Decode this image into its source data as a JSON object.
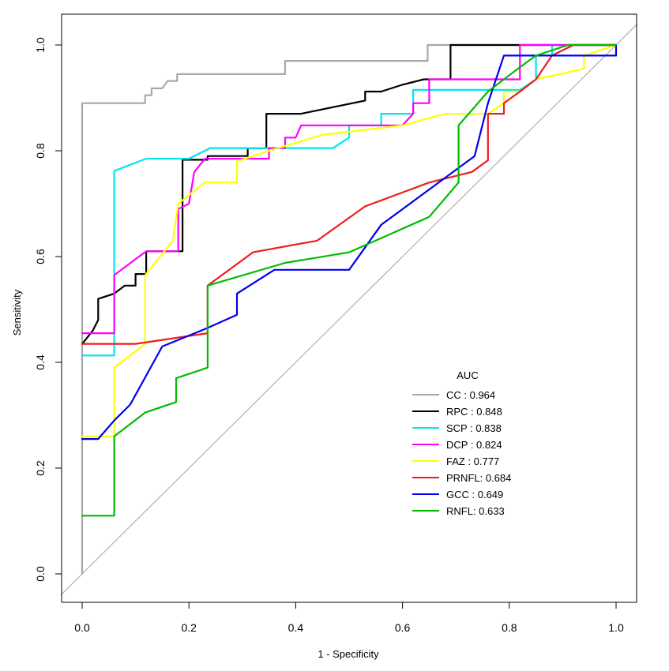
{
  "chart_data": {
    "type": "line",
    "title": "",
    "xlabel": "1 - Specificity",
    "ylabel": "Sensitivity",
    "xlim": [
      0,
      1
    ],
    "ylim": [
      0,
      1
    ],
    "xticks": [
      "0.0",
      "0.2",
      "0.4",
      "0.6",
      "0.8",
      "1.0"
    ],
    "yticks": [
      "0.0",
      "0.2",
      "0.4",
      "0.6",
      "0.8",
      "1.0"
    ],
    "legend_title": "AUC",
    "legend_position": "lower-right",
    "reference_line": true,
    "series": [
      {
        "name": "CC",
        "label": "CC   : 0.964",
        "auc": 0.964,
        "color": "#a8a8a8",
        "points": [
          [
            0,
            0
          ],
          [
            0,
            0.89
          ],
          [
            0.118,
            0.89
          ],
          [
            0.118,
            0.905
          ],
          [
            0.13,
            0.905
          ],
          [
            0.13,
            0.918
          ],
          [
            0.15,
            0.918
          ],
          [
            0.16,
            0.932
          ],
          [
            0.178,
            0.932
          ],
          [
            0.178,
            0.945
          ],
          [
            0.38,
            0.945
          ],
          [
            0.38,
            0.97
          ],
          [
            0.647,
            0.97
          ],
          [
            0.647,
            1.0
          ],
          [
            1.0,
            1.0
          ]
        ]
      },
      {
        "name": "RPC",
        "label": "RPC  : 0.848",
        "auc": 0.848,
        "color": "#000000",
        "points": [
          [
            0,
            0.435
          ],
          [
            0.02,
            0.46
          ],
          [
            0.03,
            0.48
          ],
          [
            0.03,
            0.52
          ],
          [
            0.06,
            0.53
          ],
          [
            0.08,
            0.545
          ],
          [
            0.1,
            0.545
          ],
          [
            0.1,
            0.567
          ],
          [
            0.12,
            0.567
          ],
          [
            0.12,
            0.61
          ],
          [
            0.188,
            0.61
          ],
          [
            0.188,
            0.783
          ],
          [
            0.235,
            0.783
          ],
          [
            0.235,
            0.79
          ],
          [
            0.31,
            0.79
          ],
          [
            0.31,
            0.805
          ],
          [
            0.345,
            0.805
          ],
          [
            0.345,
            0.87
          ],
          [
            0.41,
            0.87
          ],
          [
            0.53,
            0.895
          ],
          [
            0.53,
            0.912
          ],
          [
            0.56,
            0.912
          ],
          [
            0.6,
            0.925
          ],
          [
            0.64,
            0.935
          ],
          [
            0.69,
            0.935
          ],
          [
            0.69,
            1.0
          ],
          [
            1.0,
            1.0
          ]
        ]
      },
      {
        "name": "SCP",
        "label": "SCP  : 0.838",
        "auc": 0.838,
        "color": "#00e5ee",
        "points": [
          [
            0,
            0.413
          ],
          [
            0.06,
            0.413
          ],
          [
            0.06,
            0.762
          ],
          [
            0.12,
            0.785
          ],
          [
            0.2,
            0.785
          ],
          [
            0.24,
            0.805
          ],
          [
            0.47,
            0.805
          ],
          [
            0.5,
            0.825
          ],
          [
            0.5,
            0.848
          ],
          [
            0.56,
            0.848
          ],
          [
            0.56,
            0.87
          ],
          [
            0.62,
            0.87
          ],
          [
            0.62,
            0.915
          ],
          [
            0.78,
            0.915
          ],
          [
            0.82,
            0.915
          ],
          [
            0.85,
            0.935
          ],
          [
            0.85,
            0.98
          ],
          [
            0.88,
            0.98
          ],
          [
            0.88,
            1.0
          ],
          [
            1.0,
            1.0
          ]
        ]
      },
      {
        "name": "DCP",
        "label": "DCP  : 0.824",
        "auc": 0.824,
        "color": "#ff00ff",
        "points": [
          [
            0,
            0.455
          ],
          [
            0.06,
            0.455
          ],
          [
            0.06,
            0.565
          ],
          [
            0.12,
            0.61
          ],
          [
            0.18,
            0.61
          ],
          [
            0.18,
            0.69
          ],
          [
            0.2,
            0.7
          ],
          [
            0.21,
            0.76
          ],
          [
            0.23,
            0.785
          ],
          [
            0.35,
            0.785
          ],
          [
            0.35,
            0.805
          ],
          [
            0.38,
            0.805
          ],
          [
            0.38,
            0.825
          ],
          [
            0.4,
            0.825
          ],
          [
            0.41,
            0.848
          ],
          [
            0.6,
            0.848
          ],
          [
            0.62,
            0.87
          ],
          [
            0.62,
            0.89
          ],
          [
            0.65,
            0.89
          ],
          [
            0.65,
            0.935
          ],
          [
            0.82,
            0.935
          ],
          [
            0.82,
            1.0
          ],
          [
            1.0,
            1.0
          ]
        ]
      },
      {
        "name": "FAZ",
        "label": "FAZ  : 0.777",
        "auc": 0.777,
        "color": "#ffff00",
        "points": [
          [
            0,
            0.26
          ],
          [
            0.06,
            0.26
          ],
          [
            0.06,
            0.39
          ],
          [
            0.118,
            0.435
          ],
          [
            0.118,
            0.565
          ],
          [
            0.17,
            0.63
          ],
          [
            0.18,
            0.7
          ],
          [
            0.23,
            0.74
          ],
          [
            0.29,
            0.74
          ],
          [
            0.29,
            0.78
          ],
          [
            0.35,
            0.8
          ],
          [
            0.45,
            0.83
          ],
          [
            0.6,
            0.848
          ],
          [
            0.68,
            0.87
          ],
          [
            0.76,
            0.87
          ],
          [
            0.79,
            0.89
          ],
          [
            0.79,
            0.912
          ],
          [
            0.82,
            0.912
          ],
          [
            0.85,
            0.935
          ],
          [
            0.94,
            0.955
          ],
          [
            0.94,
            0.98
          ],
          [
            1.0,
            1.0
          ]
        ]
      },
      {
        "name": "PRNFL",
        "label": "PRNFL: 0.684",
        "auc": 0.684,
        "color": "#ee1c1c",
        "points": [
          [
            0,
            0.435
          ],
          [
            0.1,
            0.435
          ],
          [
            0.235,
            0.455
          ],
          [
            0.235,
            0.545
          ],
          [
            0.32,
            0.608
          ],
          [
            0.44,
            0.63
          ],
          [
            0.53,
            0.695
          ],
          [
            0.65,
            0.74
          ],
          [
            0.73,
            0.76
          ],
          [
            0.76,
            0.782
          ],
          [
            0.76,
            0.87
          ],
          [
            0.79,
            0.87
          ],
          [
            0.79,
            0.89
          ],
          [
            0.82,
            0.912
          ],
          [
            0.85,
            0.935
          ],
          [
            0.88,
            0.98
          ],
          [
            0.92,
            1.0
          ],
          [
            1.0,
            1.0
          ]
        ]
      },
      {
        "name": "GCC",
        "label": "GCC  : 0.649",
        "auc": 0.649,
        "color": "#0000ee",
        "points": [
          [
            0,
            0.255
          ],
          [
            0.03,
            0.255
          ],
          [
            0.06,
            0.29
          ],
          [
            0.09,
            0.32
          ],
          [
            0.15,
            0.43
          ],
          [
            0.235,
            0.465
          ],
          [
            0.29,
            0.49
          ],
          [
            0.29,
            0.53
          ],
          [
            0.36,
            0.575
          ],
          [
            0.5,
            0.575
          ],
          [
            0.56,
            0.66
          ],
          [
            0.735,
            0.79
          ],
          [
            0.76,
            0.89
          ],
          [
            0.79,
            0.98
          ],
          [
            0.85,
            0.98
          ],
          [
            1.0,
            0.98
          ],
          [
            1.0,
            1.0
          ]
        ]
      },
      {
        "name": "RNFL",
        "label": "RNFL: 0.633",
        "auc": 0.633,
        "color": "#00bb00",
        "points": [
          [
            0,
            0.11
          ],
          [
            0.06,
            0.11
          ],
          [
            0.06,
            0.26
          ],
          [
            0.118,
            0.305
          ],
          [
            0.176,
            0.325
          ],
          [
            0.176,
            0.37
          ],
          [
            0.235,
            0.39
          ],
          [
            0.235,
            0.545
          ],
          [
            0.38,
            0.588
          ],
          [
            0.5,
            0.608
          ],
          [
            0.65,
            0.675
          ],
          [
            0.705,
            0.74
          ],
          [
            0.705,
            0.848
          ],
          [
            0.76,
            0.912
          ],
          [
            0.79,
            0.935
          ],
          [
            0.82,
            0.958
          ],
          [
            0.85,
            0.98
          ],
          [
            0.91,
            1.0
          ],
          [
            1.0,
            1.0
          ]
        ]
      }
    ]
  }
}
